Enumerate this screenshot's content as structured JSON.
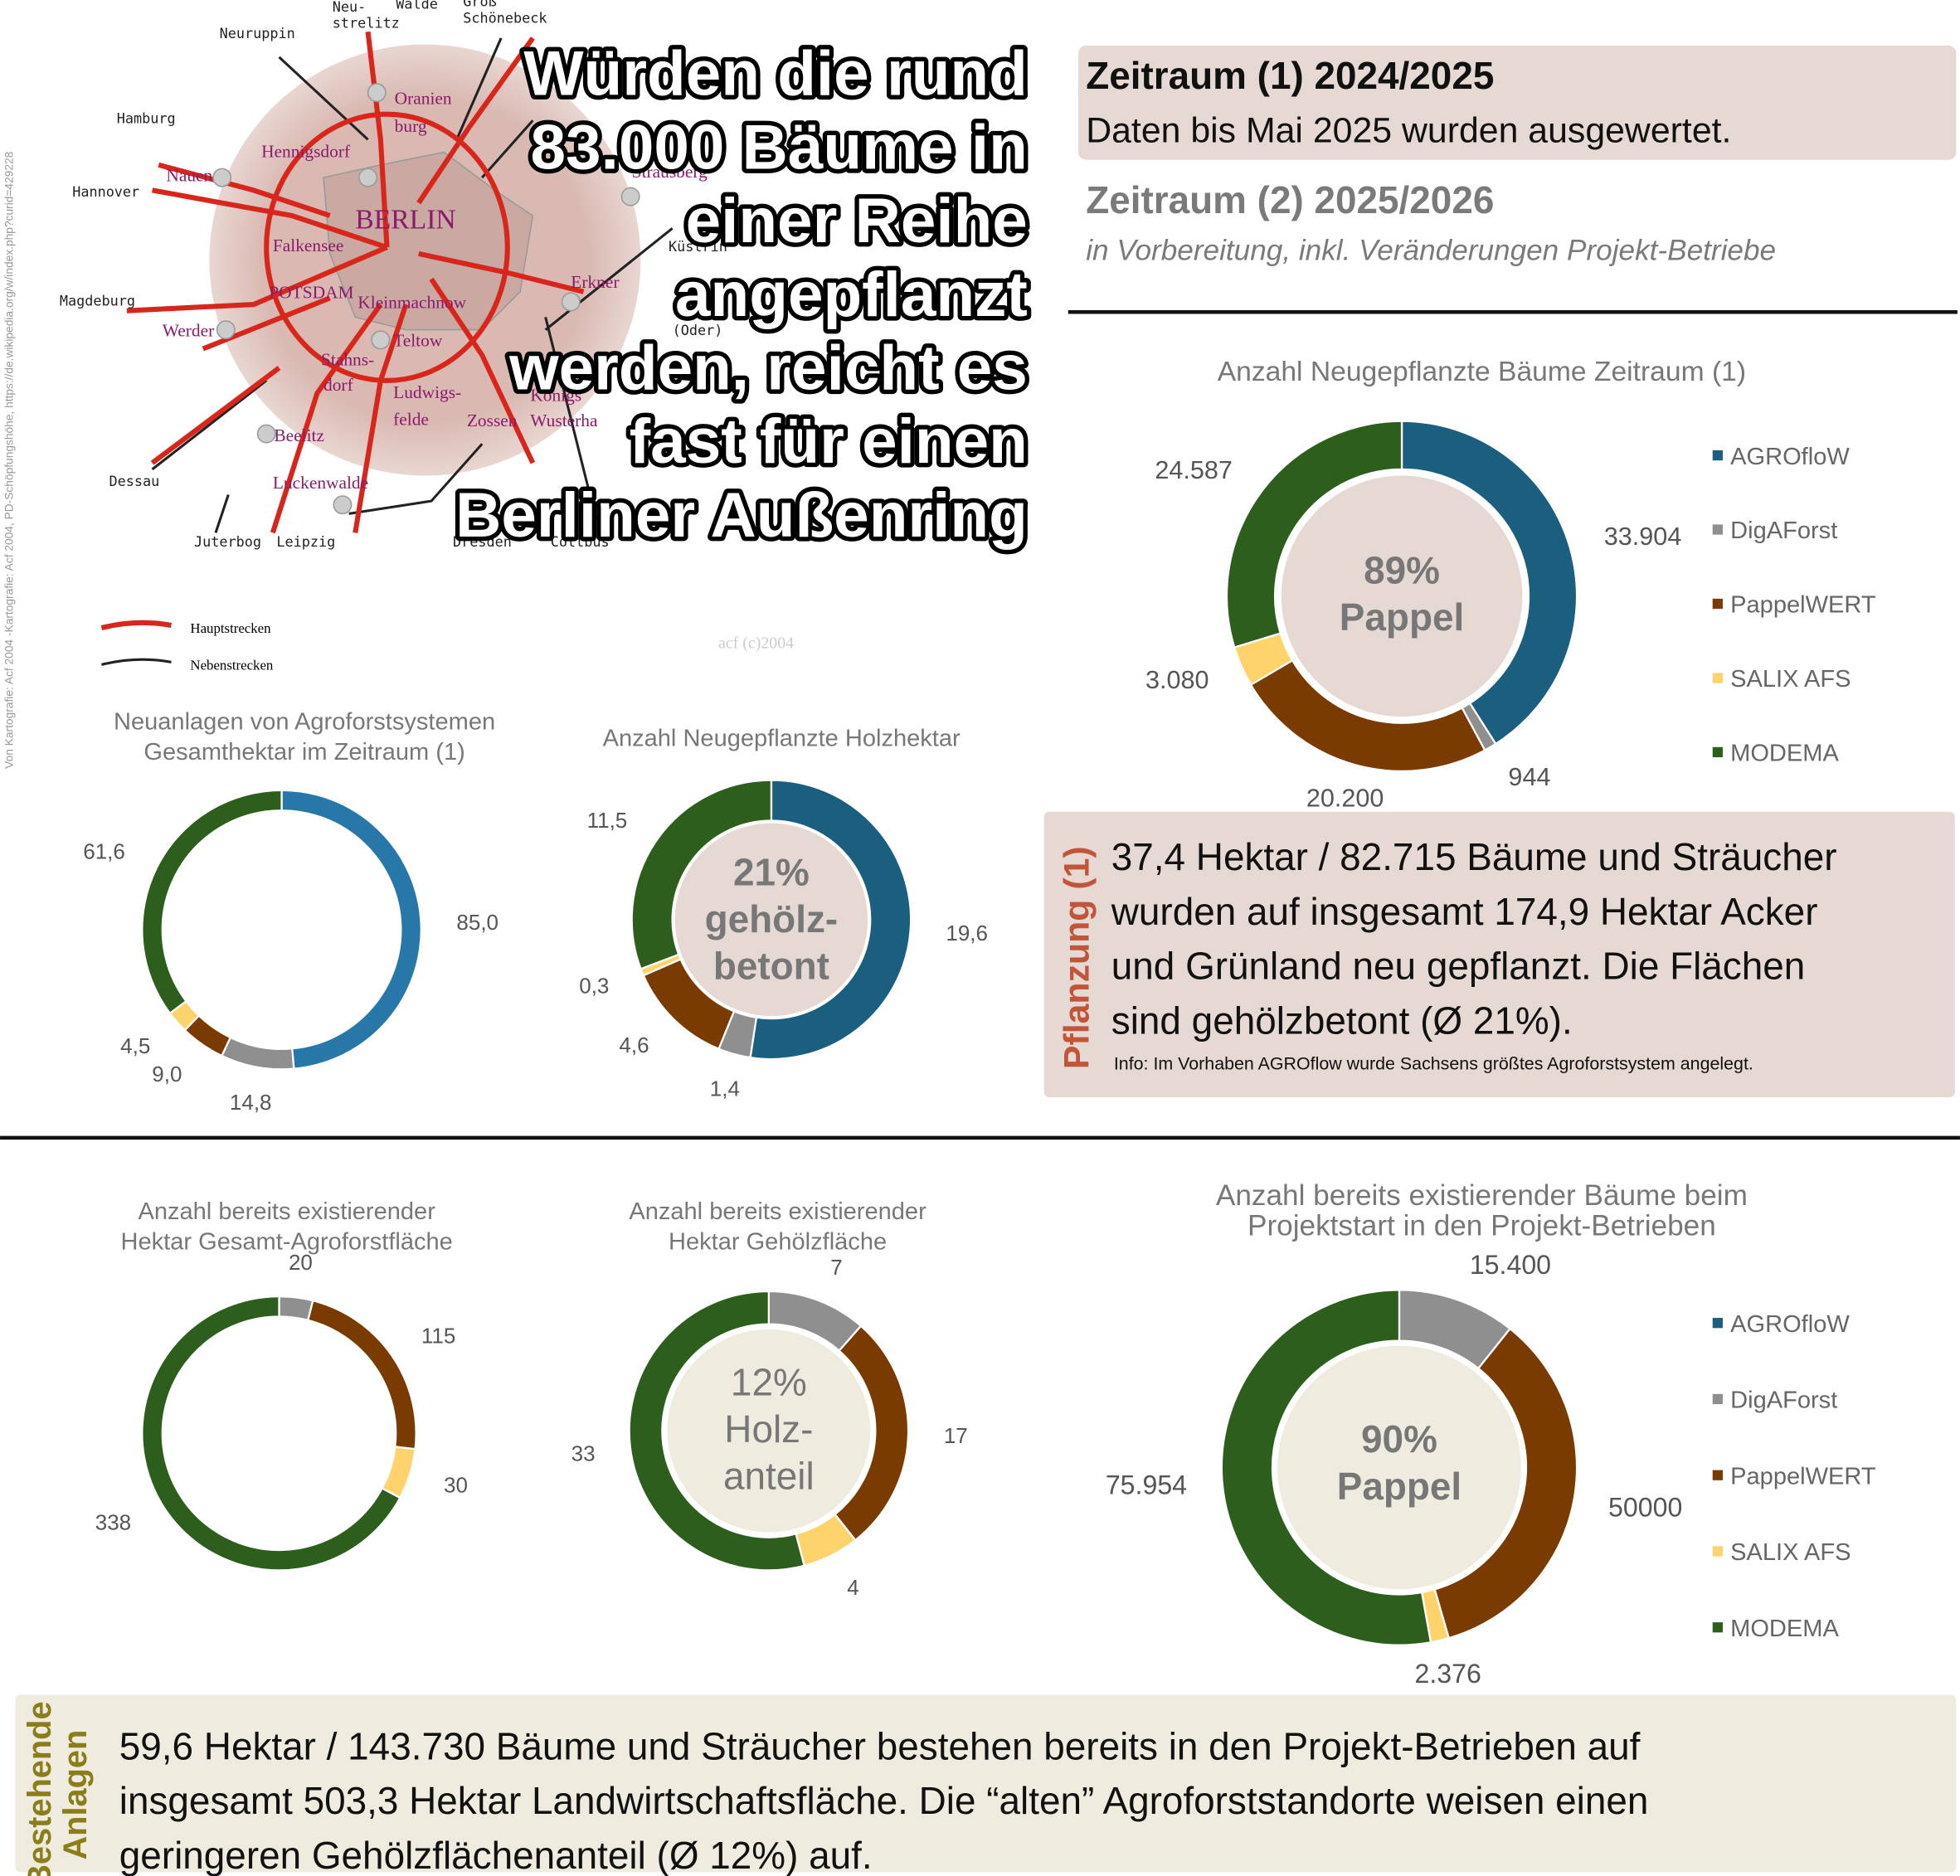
{
  "map": {
    "credit": "Von Kartografie: Acf 2004 -Kartografie: Acf 2004, PD-Schöpfungshöhe, https://de.wikipedia.org/w/index.php?curid=429228",
    "watermark": "acf (c)2004",
    "far_cities": [
      "Neuruppin",
      "Neu-",
      "strelitz",
      "Walde",
      "Groß",
      "Schönebeck",
      "Hamburg",
      "Hannover",
      "Magdeburg",
      "Dessau",
      "Juterbog",
      "Leipzig",
      "Dresden",
      "Cottbus",
      "(Oder)",
      "Küstrin"
    ],
    "towns": [
      "Oranien",
      "burg",
      "Hennigsdorf",
      "Nauen",
      "BERLIN",
      "Falkensee",
      "Strausberg",
      "Erkner",
      "POTSDAM",
      "Kleinmachnow",
      "Werder",
      "Teltow",
      "Stahns-",
      "dorf",
      "Ludwigs-",
      "felde",
      "Zossen",
      "Königs",
      "Wusterha",
      "Beelitz",
      "Luckenwalde"
    ],
    "legend": [
      "Hauptstrecken",
      "Nebenstrecken"
    ]
  },
  "headline": [
    "Würden die rund",
    "83.000 Bäume in",
    "einer Reihe",
    "angepflanzt",
    "werden, reicht es",
    "fast für einen",
    "Berliner Außenring"
  ],
  "periods": {
    "p1_title": "Zeitraum (1) 2024/2025",
    "p1_text": "Daten bis Mai 2025 wurden ausgewertet.",
    "p2_title": "Zeitraum (2) 2025/2026",
    "p2_text": "in Vorbereitung, inkl. Veränderungen Projekt-Betriebe"
  },
  "planting": {
    "label": "Pflanzung (1)",
    "lines": [
      "37,4 Hektar / 82.715 Bäume und Sträucher",
      "wurden auf insgesamt 174,9 Hektar Acker",
      "und Grünland neu gepflanzt. Die Flächen",
      "sind gehölzbetont (Ø 21%)."
    ],
    "info": "Info: Im Vorhaben AGROflow wurde Sachsens größtes Agroforstsystem angelegt."
  },
  "existing": {
    "label": [
      "Bestehende",
      "Anlagen"
    ],
    "lines": [
      "59,6 Hektar / 143.730 Bäume und Sträucher bestehen bereits in den Projekt-Betrieben auf",
      "insgesamt 503,3 Hektar Landwirtschaftsfläche. Die “alten” Agroforststandorte weisen einen",
      "geringeren Gehölzflächenanteil (Ø 12%) auf."
    ]
  },
  "chart_data": [
    {
      "type": "donut",
      "title": [
        "Anzahl Neugepflanzte Bäume Zeitraum (1)"
      ],
      "categories": [
        "AGROfloW",
        "DigAForst",
        "PappelWERT",
        "SALIX AFS",
        "MODEMA"
      ],
      "values": [
        33904,
        944,
        20200,
        3080,
        24587
      ],
      "value_labels": [
        "33.904",
        "944",
        "20.200",
        "3.080",
        "24.587"
      ],
      "colors": [
        "#1b5e7e",
        "#8f8f8f",
        "#7a3b00",
        "#ffd36b",
        "#2e5e1e"
      ],
      "center_label": [
        "89%",
        "Pappel"
      ]
    },
    {
      "type": "donut",
      "title": [
        "Neuanlagen von Agroforstsystemen",
        "Gesamthektar im Zeitraum (1)"
      ],
      "values": [
        85.0,
        14.8,
        9.0,
        4.5,
        61.6
      ],
      "value_labels": [
        "85,0",
        "14,8",
        "9,0",
        "4,5",
        "61,6"
      ],
      "colors": [
        "#2777a8",
        "#8f8f8f",
        "#7a3b00",
        "#ffd36b",
        "#2e5e1e"
      ]
    },
    {
      "type": "donut",
      "title": [
        "Anzahl Neugepflanzte Holzhektar"
      ],
      "values": [
        19.6,
        1.4,
        4.6,
        0.3,
        11.5
      ],
      "value_labels": [
        "19,6",
        "1,4",
        "4,6",
        "0,3",
        "11,5"
      ],
      "colors": [
        "#1b5e7e",
        "#8f8f8f",
        "#7a3b00",
        "#ffd36b",
        "#2e5e1e"
      ],
      "center_label": [
        "21%",
        "gehölz-",
        "betont"
      ]
    },
    {
      "type": "donut",
      "title": [
        "Anzahl bereits existierender",
        "Hektar Gesamt-Agroforstfläche"
      ],
      "values": [
        20,
        115,
        30,
        338
      ],
      "colors": [
        "#8f8f8f",
        "#7a3b00",
        "#ffd36b",
        "#2e5e1e"
      ]
    },
    {
      "type": "donut",
      "title": [
        "Anzahl bereits existierender",
        "Hektar Gehölzfläche"
      ],
      "values": [
        7,
        17,
        4,
        33
      ],
      "colors": [
        "#8f8f8f",
        "#7a3b00",
        "#ffd36b",
        "#2e5e1e"
      ],
      "center_label": [
        "12%",
        "Holz-",
        "anteil"
      ]
    },
    {
      "type": "donut",
      "title": [
        "Anzahl bereits existierender Bäume beim",
        "Projektstart in den Projekt-Betrieben"
      ],
      "categories": [
        "AGROfloW",
        "DigAForst",
        "PappelWERT",
        "SALIX AFS",
        "MODEMA"
      ],
      "values": [
        null,
        15400,
        50000,
        2376,
        75954
      ],
      "value_labels": [
        null,
        "15.400",
        "50000",
        "2.376",
        "75.954"
      ],
      "colors": [
        "#1b5e7e",
        "#8f8f8f",
        "#7a3b00",
        "#ffd36b",
        "#2e5e1e"
      ],
      "center_label": [
        "90%",
        "Pappel"
      ]
    }
  ]
}
